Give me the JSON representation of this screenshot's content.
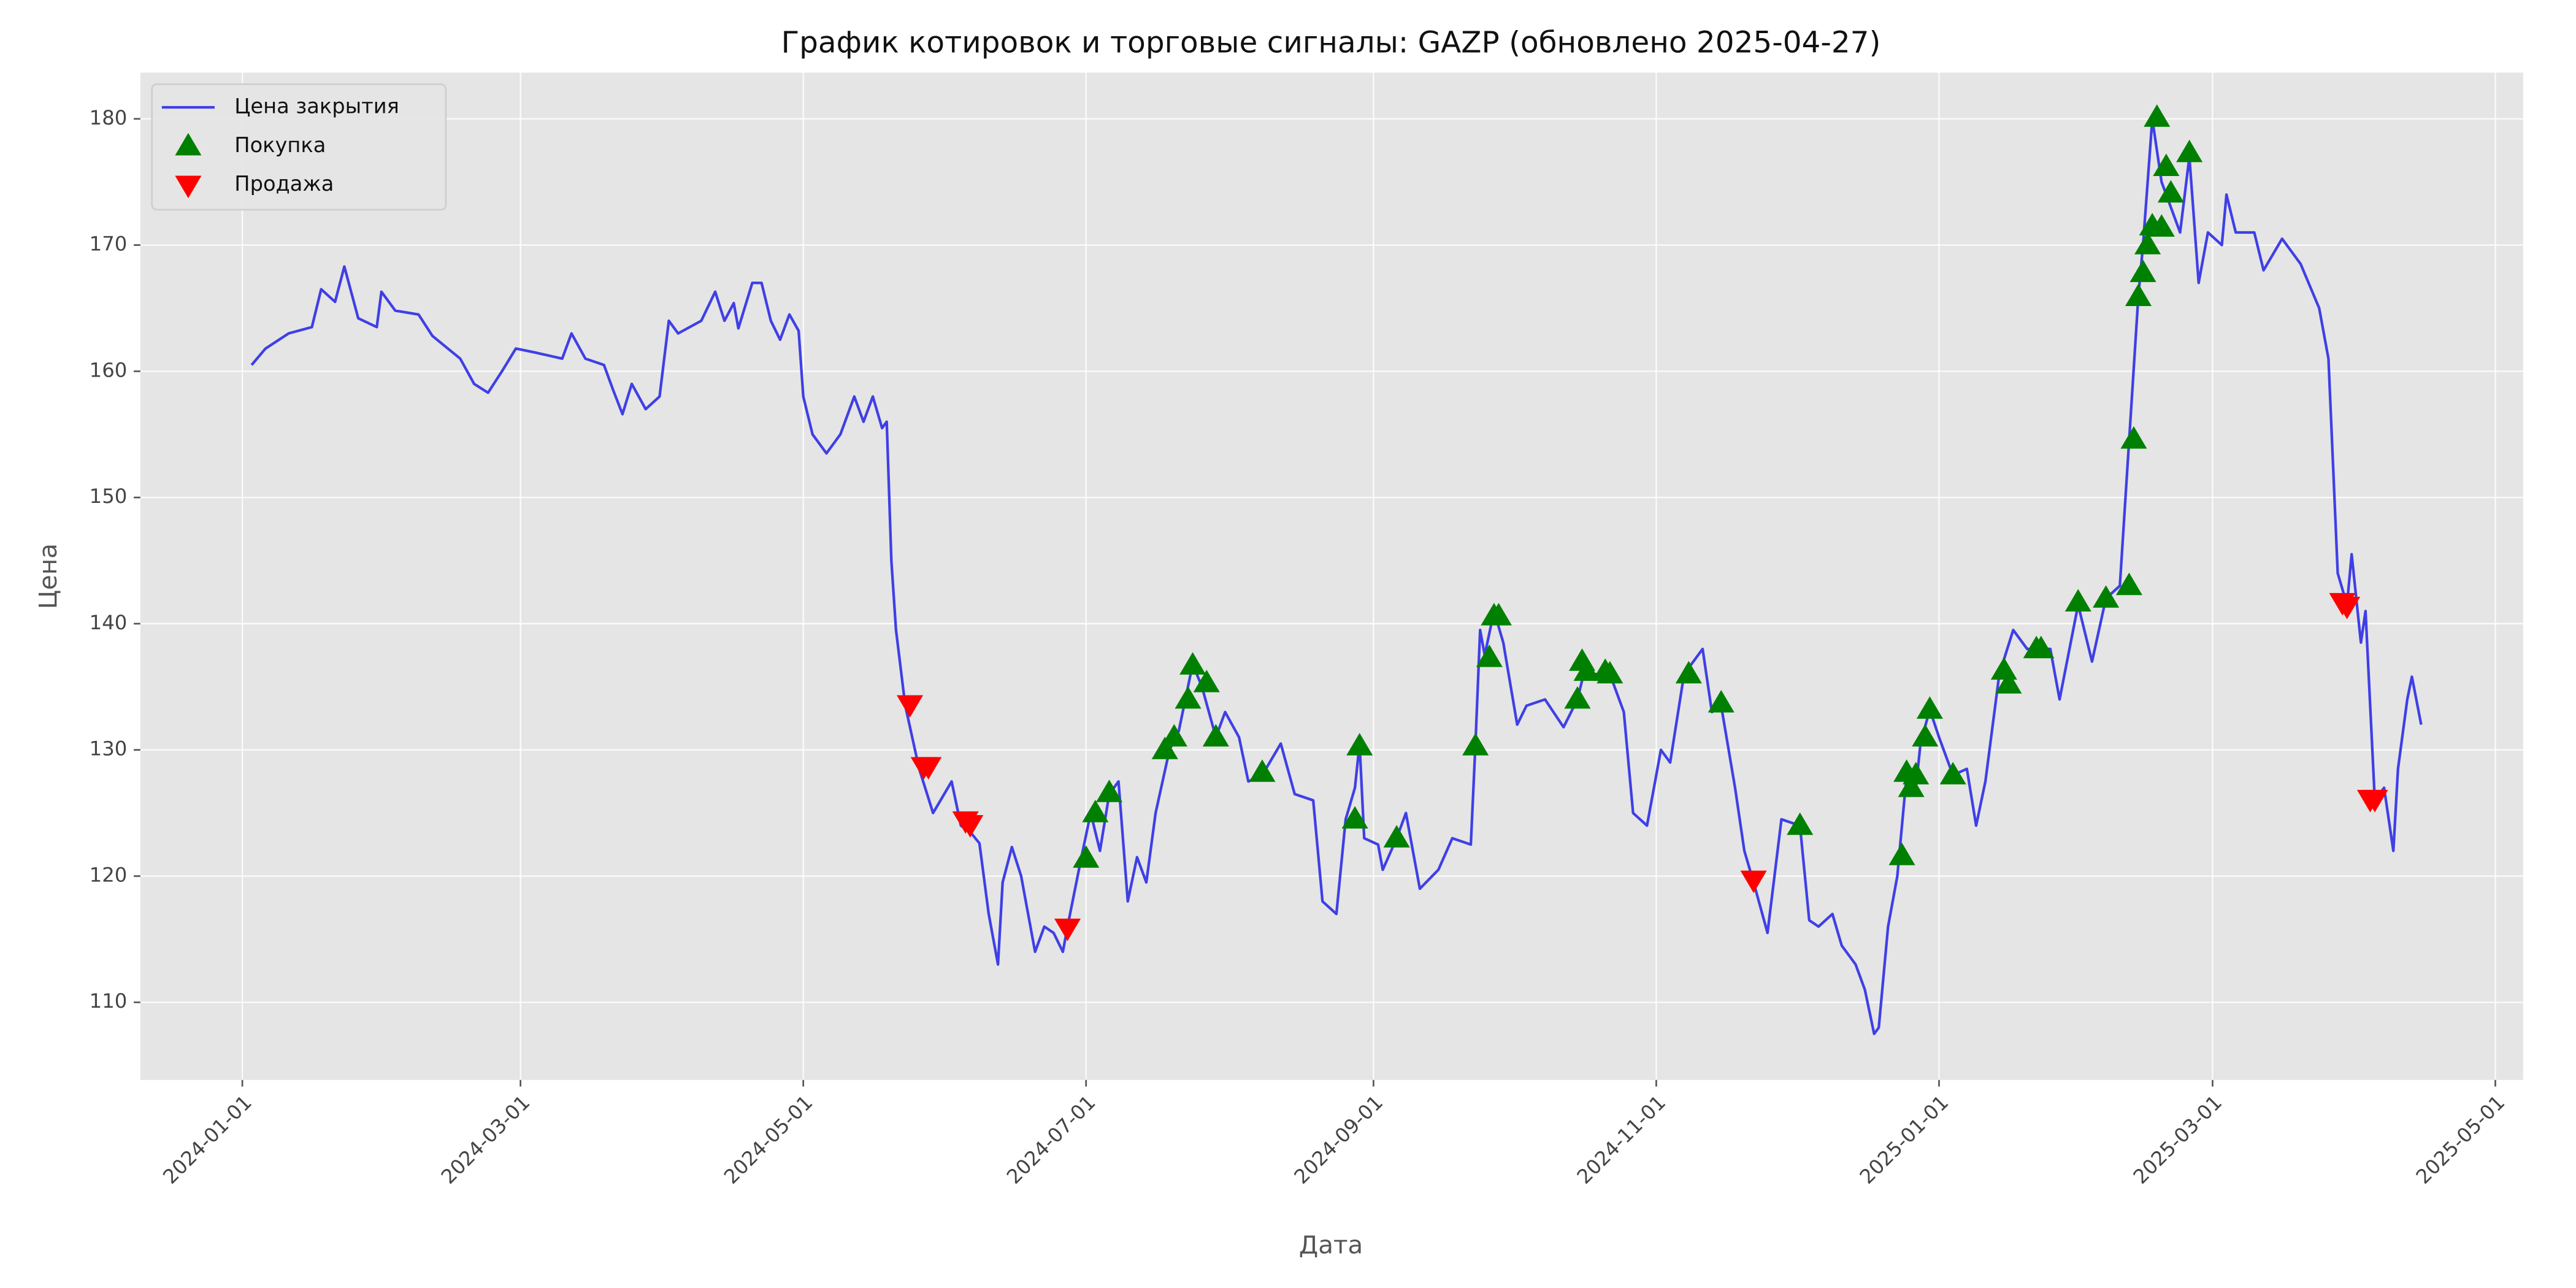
{
  "chart_data": {
    "type": "line",
    "title": "График котировок и торговые сигналы: GAZP (обновлено 2025-04-27)",
    "x_label": "Дата",
    "y_label": "Цена",
    "grid": true,
    "legend": "upper left",
    "xlim": [
      "2023-12-10",
      "2025-05-07"
    ],
    "xticks": [
      "2024-01-01",
      "2024-03-01",
      "2024-05-01",
      "2024-07-01",
      "2024-09-01",
      "2024-11-01",
      "2025-01-01",
      "2025-03-01",
      "2025-05-01"
    ],
    "ylim": [
      103.85,
      183.66
    ],
    "yticks": [
      110,
      120,
      130,
      140,
      150,
      160,
      170,
      180
    ],
    "series": [
      {
        "name": "Цена закрытия",
        "type": "line",
        "color": "#3f3fe6",
        "x": [
          "2024-01-03",
          "2024-01-06",
          "2024-01-11",
          "2024-01-16",
          "2024-01-18",
          "2024-01-21",
          "2024-01-23",
          "2024-01-26",
          "2024-01-30",
          "2024-01-31",
          "2024-02-03",
          "2024-02-08",
          "2024-02-11",
          "2024-02-17",
          "2024-02-20",
          "2024-02-23",
          "2024-02-26",
          "2024-02-29",
          "2024-03-04",
          "2024-03-10",
          "2024-03-12",
          "2024-03-15",
          "2024-03-19",
          "2024-03-21",
          "2024-03-23",
          "2024-03-25",
          "2024-03-28",
          "2024-03-31",
          "2024-04-02",
          "2024-04-04",
          "2024-04-09",
          "2024-04-12",
          "2024-04-14",
          "2024-04-16",
          "2024-04-17",
          "2024-04-20",
          "2024-04-22",
          "2024-04-24",
          "2024-04-26",
          "2024-04-28",
          "2024-04-30",
          "2024-05-01",
          "2024-05-03",
          "2024-05-06",
          "2024-05-09",
          "2024-05-12",
          "2024-05-14",
          "2024-05-16",
          "2024-05-18",
          "2024-05-19",
          "2024-05-20",
          "2024-05-21",
          "2024-05-23",
          "2024-05-26",
          "2024-05-29",
          "2024-06-02",
          "2024-06-04",
          "2024-06-06",
          "2024-06-08",
          "2024-06-10",
          "2024-06-12",
          "2024-06-13",
          "2024-06-15",
          "2024-06-17",
          "2024-06-20",
          "2024-06-22",
          "2024-06-24",
          "2024-06-26",
          "2024-06-27",
          "2024-06-30",
          "2024-07-02",
          "2024-07-04",
          "2024-07-06",
          "2024-07-08",
          "2024-07-10",
          "2024-07-12",
          "2024-07-14",
          "2024-07-16",
          "2024-07-19",
          "2024-07-21",
          "2024-07-24",
          "2024-07-26",
          "2024-07-29",
          "2024-07-31",
          "2024-08-03",
          "2024-08-05",
          "2024-08-08",
          "2024-08-12",
          "2024-08-15",
          "2024-08-19",
          "2024-08-21",
          "2024-08-24",
          "2024-08-26",
          "2024-08-28",
          "2024-08-29",
          "2024-08-30",
          "2024-09-02",
          "2024-09-03",
          "2024-09-06",
          "2024-09-08",
          "2024-09-11",
          "2024-09-15",
          "2024-09-18",
          "2024-09-22",
          "2024-09-23",
          "2024-09-24",
          "2024-09-25",
          "2024-09-27",
          "2024-09-29",
          "2024-10-02",
          "2024-10-04",
          "2024-10-08",
          "2024-10-12",
          "2024-10-15",
          "2024-10-17",
          "2024-10-18",
          "2024-10-22",
          "2024-10-25",
          "2024-10-27",
          "2024-10-30",
          "2024-11-02",
          "2024-11-04",
          "2024-11-07",
          "2024-11-11",
          "2024-11-13",
          "2024-11-15",
          "2024-11-18",
          "2024-11-20",
          "2024-11-22",
          "2024-11-25",
          "2024-11-28",
          "2024-12-02",
          "2024-12-04",
          "2024-12-06",
          "2024-12-09",
          "2024-12-11",
          "2024-12-14",
          "2024-12-16",
          "2024-12-18",
          "2024-12-19",
          "2024-12-21",
          "2024-12-23",
          "2024-12-25",
          "2024-12-27",
          "2024-12-28",
          "2024-12-30",
          "2025-01-01",
          "2025-01-04",
          "2025-01-07",
          "2025-01-09",
          "2025-01-11",
          "2025-01-14",
          "2025-01-17",
          "2025-01-20",
          "2025-01-25",
          "2025-01-27",
          "2025-01-31",
          "2025-02-03",
          "2025-02-06",
          "2025-02-09",
          "2025-02-11",
          "2025-02-13",
          "2025-02-14",
          "2025-02-16",
          "2025-02-18",
          "2025-02-20",
          "2025-02-22",
          "2025-02-24",
          "2025-02-26",
          "2025-02-28",
          "2025-03-03",
          "2025-03-04",
          "2025-03-06",
          "2025-03-10",
          "2025-03-12",
          "2025-03-16",
          "2025-03-20",
          "2025-03-24",
          "2025-03-26",
          "2025-03-28",
          "2025-03-30",
          "2025-03-31",
          "2025-04-02",
          "2025-04-03",
          "2025-04-05",
          "2025-04-07",
          "2025-04-09",
          "2025-04-10",
          "2025-04-12",
          "2025-04-13",
          "2025-04-15"
        ],
        "values": [
          160.5,
          161.8,
          163,
          163.5,
          166.5,
          165.5,
          168.3,
          164.2,
          163.5,
          166.3,
          164.8,
          164.5,
          162.8,
          161,
          159,
          158.3,
          160,
          161.8,
          161.5,
          161,
          163,
          161,
          160.5,
          158.5,
          156.6,
          159,
          157,
          158,
          164,
          163,
          164,
          166.3,
          164,
          165.4,
          163.4,
          167,
          167,
          164,
          162.5,
          164.5,
          163.2,
          158,
          155,
          153.5,
          155,
          158,
          156,
          158,
          155.5,
          156,
          145,
          139.5,
          133.5,
          128.5,
          125,
          127.5,
          124,
          123.5,
          122.6,
          117,
          113,
          119.5,
          122.3,
          120,
          114,
          116,
          115.5,
          114,
          116,
          121.5,
          125,
          122,
          126.5,
          127.5,
          118,
          121.5,
          119.5,
          125,
          130,
          131.5,
          136.8,
          135,
          131,
          133,
          131,
          127.5,
          128,
          130.5,
          126.5,
          126,
          118,
          117,
          124.5,
          127,
          130.5,
          123,
          122.5,
          120.5,
          123,
          125,
          119,
          120.5,
          123,
          122.5,
          130.5,
          139.5,
          137.5,
          141,
          138.5,
          132,
          133.5,
          134,
          131.8,
          134,
          137,
          136,
          136,
          133,
          125,
          124,
          130,
          129,
          136,
          138,
          133,
          133.5,
          127,
          122,
          119.5,
          115.5,
          124.5,
          124,
          116.5,
          116,
          117,
          114.5,
          113,
          111,
          107.5,
          108,
          116,
          120,
          128,
          127,
          130.5,
          133.2,
          131,
          128,
          128.5,
          124,
          127.5,
          136,
          139.5,
          138,
          138,
          134,
          141.5,
          137,
          142,
          143,
          154.5,
          166,
          170,
          180,
          175,
          173,
          171,
          177,
          167,
          171,
          170,
          174,
          171,
          171,
          168,
          170.5,
          168.5,
          165,
          161,
          144,
          141.5,
          145.5,
          138.5,
          141,
          126,
          127,
          122,
          128.5,
          134,
          135.8,
          132
        ]
      },
      {
        "name": "Покупка",
        "type": "scatter",
        "marker": "triangle-up",
        "color": "#008000",
        "x": [
          "2024-07-01",
          "2024-07-03",
          "2024-07-06",
          "2024-07-18",
          "2024-07-20",
          "2024-07-23",
          "2024-07-24",
          "2024-07-27",
          "2024-07-29",
          "2024-08-08",
          "2024-08-28",
          "2024-08-29",
          "2024-09-06",
          "2024-09-23",
          "2024-09-26",
          "2024-09-27",
          "2024-09-28",
          "2024-10-15",
          "2024-10-16",
          "2024-10-17",
          "2024-10-21",
          "2024-10-22",
          "2024-11-08",
          "2024-11-15",
          "2024-12-02",
          "2024-12-24",
          "2024-12-25",
          "2024-12-26",
          "2024-12-27",
          "2024-12-29",
          "2024-12-30",
          "2025-01-04",
          "2025-01-15",
          "2025-01-16",
          "2025-01-22",
          "2025-01-23",
          "2025-01-31",
          "2025-02-06",
          "2025-02-11",
          "2025-02-12",
          "2025-02-13",
          "2025-02-14",
          "2025-02-15",
          "2025-02-16",
          "2025-02-17",
          "2025-02-18",
          "2025-02-19",
          "2025-02-20",
          "2025-02-24"
        ],
        "values": [
          121.4,
          125,
          126.6,
          130,
          131,
          134,
          136.7,
          135.3,
          131,
          128.2,
          124.5,
          130.3,
          123,
          130.3,
          137.3,
          140.6,
          140.6,
          134,
          137,
          136.2,
          136.2,
          136,
          136,
          133.7,
          124,
          121.6,
          128.2,
          127,
          128,
          131,
          133.2,
          128,
          136.3,
          135.2,
          138,
          138,
          141.7,
          142,
          143,
          154.6,
          165.9,
          167.8,
          170,
          171.5,
          180.1,
          171.4,
          176.2,
          174.1,
          177.3
        ]
      },
      {
        "name": "Продажа",
        "type": "scatter",
        "marker": "triangle-down",
        "color": "#ff0000",
        "x": [
          "2024-05-24",
          "2024-05-27",
          "2024-05-28",
          "2024-06-05",
          "2024-06-06",
          "2024-06-27",
          "2024-11-22",
          "2025-03-29",
          "2025-03-30",
          "2025-04-04",
          "2025-04-05"
        ],
        "values": [
          133.6,
          128.7,
          128.7,
          124.4,
          124.1,
          115.9,
          119.7,
          141.7,
          141.4,
          126.1,
          126.1
        ]
      }
    ]
  }
}
